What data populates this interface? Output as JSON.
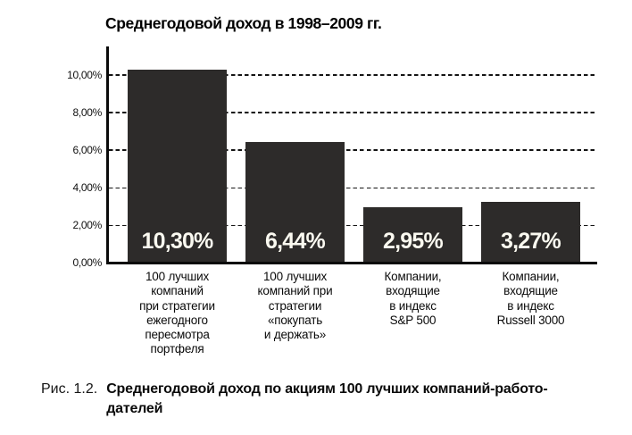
{
  "figure": {
    "caption": {
      "label": "Рис. 1.2.",
      "text": "Среднегодовой доход по акциям 100 лучших компаний-работо-\nдателей"
    }
  },
  "chart_data": {
    "type": "bar",
    "title": "Среднегодовой доход в 1998–2009 гг.",
    "categories": [
      "100 лучших\nкомпаний\nпри стратегии\nежегодного\nпересмотра\nпортфеля",
      "100 лучших\nкомпаний при\nстратегии\n«покупать\nи держать»",
      "Компании,\nвходящие\nв индекс\nS&P 500",
      "Компании,\nвходящие\nв индекс\nRussell 3000"
    ],
    "values": [
      10.3,
      6.44,
      2.95,
      3.27
    ],
    "value_labels": [
      "10,30%",
      "6,44%",
      "2,95%",
      "3,27%"
    ],
    "xlabel": "",
    "ylabel": "",
    "y_axis": {
      "ticks": [
        {
          "label": "10,00%",
          "value": 10
        },
        {
          "label": "8,00%",
          "value": 8
        },
        {
          "label": "6,00%",
          "value": 6
        },
        {
          "label": "4,00%",
          "value": 4
        },
        {
          "label": "2,00%",
          "value": 2
        },
        {
          "label": "0,00%",
          "value": 0
        }
      ],
      "ylim": [
        0,
        11.5
      ]
    },
    "grid": "horizontal-dashed",
    "legend": "none",
    "colors": {
      "bar": "#2d2b2a",
      "bar_label_text": "#faf9f0",
      "axis": "#0a0a0a",
      "text": "#0a0a0a"
    }
  }
}
